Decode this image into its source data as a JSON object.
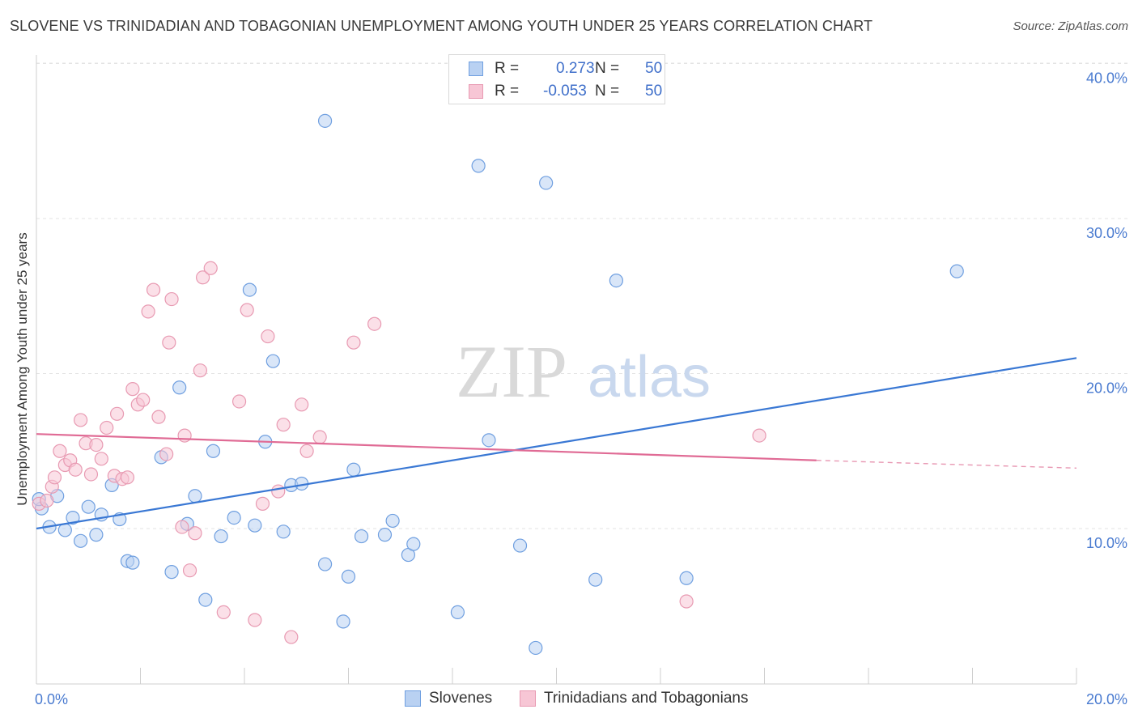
{
  "header": {
    "title": "SLOVENE VS TRINIDADIAN AND TOBAGONIAN UNEMPLOYMENT AMONG YOUTH UNDER 25 YEARS CORRELATION CHART",
    "source": "Source: ZipAtlas.com"
  },
  "watermark": {
    "zip": "ZIP",
    "atlas": "atlas"
  },
  "legend_top": {
    "rows": [
      {
        "r_label": "R =",
        "r_value": "0.273",
        "n_label": "N =",
        "n_value": "50"
      },
      {
        "r_label": "R =",
        "r_value": "-0.053",
        "n_label": "N =",
        "n_value": "50"
      }
    ]
  },
  "chart_data": {
    "type": "scatter",
    "title": "SLOVENE VS TRINIDADIAN AND TOBAGONIAN UNEMPLOYMENT AMONG YOUTH UNDER 25 YEARS CORRELATION CHART",
    "xlabel": "",
    "ylabel": "Unemployment Among Youth under 25 years",
    "xlim": [
      0,
      20
    ],
    "ylim": [
      0,
      40
    ],
    "x_tick_labels": [
      "0.0%",
      "20.0%"
    ],
    "y_ticks": [
      10,
      20,
      30,
      40
    ],
    "y_tick_labels": [
      "10.0%",
      "20.0%",
      "30.0%",
      "40.0%"
    ],
    "grid": true,
    "legend_position": "bottom",
    "series": [
      {
        "name": "Slovenes",
        "color": "#6f9fe0",
        "fill": "#b9d1f2",
        "r": 0.273,
        "n": 50,
        "trend": {
          "x": [
            0,
            20
          ],
          "y": [
            10.0,
            21.0
          ]
        },
        "points": [
          [
            0.1,
            11.3
          ],
          [
            0.25,
            10.1
          ],
          [
            0.4,
            12.1
          ],
          [
            0.55,
            9.9
          ],
          [
            0.7,
            10.7
          ],
          [
            0.85,
            9.2
          ],
          [
            1.0,
            11.4
          ],
          [
            1.15,
            9.6
          ],
          [
            1.25,
            10.9
          ],
          [
            1.45,
            12.8
          ],
          [
            1.6,
            10.6
          ],
          [
            1.75,
            7.9
          ],
          [
            1.85,
            7.8
          ],
          [
            2.4,
            14.6
          ],
          [
            2.6,
            7.2
          ],
          [
            2.75,
            19.1
          ],
          [
            2.9,
            10.3
          ],
          [
            3.05,
            12.1
          ],
          [
            3.25,
            5.4
          ],
          [
            3.4,
            15.0
          ],
          [
            3.55,
            9.5
          ],
          [
            3.8,
            10.7
          ],
          [
            4.1,
            25.4
          ],
          [
            4.2,
            10.2
          ],
          [
            4.4,
            15.6
          ],
          [
            4.55,
            20.8
          ],
          [
            4.75,
            9.8
          ],
          [
            4.9,
            12.8
          ],
          [
            5.1,
            12.9
          ],
          [
            5.55,
            7.7
          ],
          [
            5.55,
            36.3
          ],
          [
            5.9,
            4.0
          ],
          [
            6.0,
            6.9
          ],
          [
            6.1,
            13.8
          ],
          [
            6.25,
            9.5
          ],
          [
            6.7,
            9.6
          ],
          [
            6.85,
            10.5
          ],
          [
            7.15,
            8.3
          ],
          [
            7.25,
            9.0
          ],
          [
            8.1,
            4.6
          ],
          [
            8.5,
            33.4
          ],
          [
            8.7,
            15.7
          ],
          [
            9.3,
            8.9
          ],
          [
            9.6,
            2.3
          ],
          [
            9.8,
            32.3
          ],
          [
            10.75,
            6.7
          ],
          [
            11.15,
            26.0
          ],
          [
            12.5,
            6.8
          ],
          [
            17.7,
            26.6
          ],
          [
            0.05,
            11.9
          ]
        ]
      },
      {
        "name": "Trinidadians and Tobagonians",
        "color": "#e89ab2",
        "fill": "#f7c6d5",
        "r": -0.053,
        "n": 50,
        "trend": {
          "x": [
            0,
            15.0,
            20
          ],
          "y": [
            16.1,
            14.4,
            13.9
          ],
          "solid_until_x": 15.0
        },
        "points": [
          [
            0.05,
            11.6
          ],
          [
            0.2,
            11.8
          ],
          [
            0.3,
            12.7
          ],
          [
            0.35,
            13.3
          ],
          [
            0.45,
            15.0
          ],
          [
            0.55,
            14.1
          ],
          [
            0.65,
            14.4
          ],
          [
            0.75,
            13.8
          ],
          [
            0.85,
            17.0
          ],
          [
            0.95,
            15.5
          ],
          [
            1.05,
            13.5
          ],
          [
            1.15,
            15.4
          ],
          [
            1.25,
            14.5
          ],
          [
            1.35,
            16.5
          ],
          [
            1.5,
            13.4
          ],
          [
            1.55,
            17.4
          ],
          [
            1.65,
            13.2
          ],
          [
            1.75,
            13.3
          ],
          [
            1.85,
            19.0
          ],
          [
            1.95,
            18.0
          ],
          [
            2.05,
            18.3
          ],
          [
            2.15,
            24.0
          ],
          [
            2.25,
            25.4
          ],
          [
            2.35,
            17.2
          ],
          [
            2.5,
            14.8
          ],
          [
            2.55,
            22.0
          ],
          [
            2.6,
            24.8
          ],
          [
            2.8,
            10.1
          ],
          [
            2.85,
            16.0
          ],
          [
            2.95,
            7.3
          ],
          [
            3.05,
            9.7
          ],
          [
            3.15,
            20.2
          ],
          [
            3.2,
            26.2
          ],
          [
            3.35,
            26.8
          ],
          [
            3.6,
            4.6
          ],
          [
            3.9,
            18.2
          ],
          [
            4.05,
            24.1
          ],
          [
            4.2,
            4.1
          ],
          [
            4.35,
            11.6
          ],
          [
            4.45,
            22.4
          ],
          [
            4.65,
            12.4
          ],
          [
            4.75,
            16.7
          ],
          [
            4.9,
            3.0
          ],
          [
            5.1,
            18.0
          ],
          [
            5.2,
            15.0
          ],
          [
            5.45,
            15.9
          ],
          [
            6.1,
            22.0
          ],
          [
            6.5,
            23.2
          ],
          [
            12.5,
            5.3
          ],
          [
            13.9,
            16.0
          ]
        ]
      }
    ]
  }
}
